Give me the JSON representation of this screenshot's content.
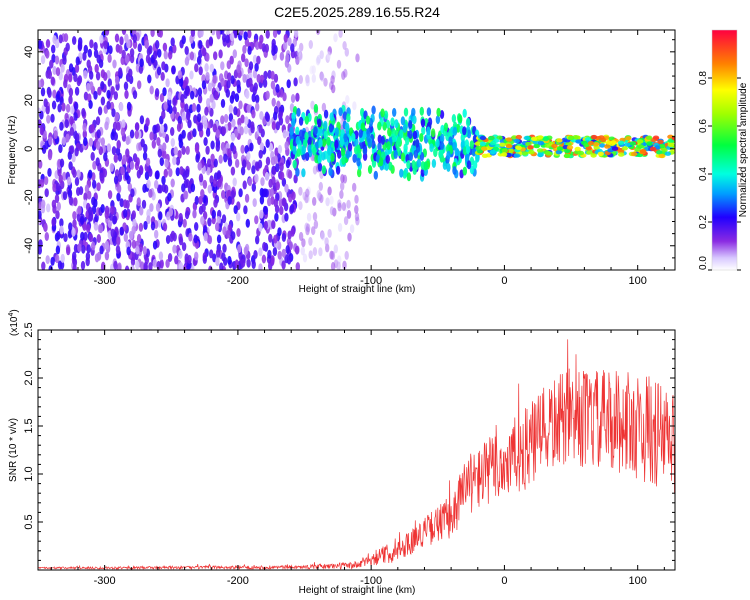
{
  "title": "C2E5.2025.289.16.55.R24",
  "chart_data": [
    {
      "type": "heatmap",
      "name": "spectrogram",
      "xlabel": "Height of straight line (km)",
      "ylabel": "Frequency (Hz)",
      "xlim": [
        -350,
        128
      ],
      "ylim": [
        -50,
        49
      ],
      "xticks": [
        -300,
        -200,
        -100,
        0,
        100
      ],
      "xtick_labels": [
        "-300",
        "-200",
        "-100",
        "0",
        "100"
      ],
      "yticks": [
        -40,
        -20,
        0,
        20,
        40
      ],
      "ytick_labels": [
        "-40",
        "-20",
        "0",
        "20",
        "40"
      ],
      "colorbar": {
        "label": "Normalized spectral amplitude",
        "range": [
          0.0,
          1.0
        ],
        "ticks": [
          0.0,
          0.2,
          0.4,
          0.6,
          0.8
        ],
        "tick_labels": [
          "0.0",
          "0.2",
          "0.4",
          "0.6",
          "0.8"
        ]
      },
      "regions": [
        {
          "x_range": [
            -350,
            -155
          ],
          "freq_range": [
            -50,
            49
          ],
          "amplitude_range": [
            0.05,
            0.22
          ],
          "density": "dense"
        },
        {
          "x_range": [
            -155,
            -110
          ],
          "freq_range": [
            -50,
            49
          ],
          "amplitude_range": [
            0.02,
            0.12
          ],
          "density": "sparse"
        },
        {
          "x_range": [
            -160,
            -20
          ],
          "freq_range": [
            -12,
            18
          ],
          "amplitude_range": [
            0.2,
            0.55
          ],
          "density": "band"
        },
        {
          "x_range": [
            -20,
            128
          ],
          "freq_range": [
            -3,
            5
          ],
          "amplitude_range": [
            0.2,
            0.95
          ],
          "density": "narrow-band"
        }
      ]
    },
    {
      "type": "line",
      "name": "snr",
      "xlabel": "Height of straight line (km)",
      "ylabel": "SNR (10 * v/v)",
      "scale_note": "(x10",
      "scale_exp": "4",
      "xlim": [
        -350,
        128
      ],
      "ylim": [
        0,
        2.5
      ],
      "xticks": [
        -300,
        -200,
        -100,
        0,
        100
      ],
      "xtick_labels": [
        "-300",
        "-200",
        "-100",
        "0",
        "100"
      ],
      "yticks": [
        0.5,
        1.0,
        1.5,
        2.0,
        2.5
      ],
      "ytick_labels": [
        "0.5",
        "1.0",
        "1.5",
        "2.0",
        "2.5"
      ],
      "color": "#ee3333",
      "envelope": {
        "x": [
          -350,
          -150,
          -110,
          -100,
          -80,
          -60,
          -40,
          -30,
          -20,
          -10,
          0,
          20,
          35,
          50,
          70,
          90,
          110,
          128
        ],
        "y": [
          0.02,
          0.03,
          0.05,
          0.12,
          0.2,
          0.4,
          0.55,
          0.85,
          0.95,
          1.05,
          1.1,
          1.3,
          1.5,
          1.6,
          1.55,
          1.55,
          1.45,
          1.3
        ]
      },
      "noise": {
        "x": [
          -350,
          -150,
          -110,
          -100,
          -60,
          -30,
          0,
          40,
          128
        ],
        "amplitude": [
          0.01,
          0.02,
          0.04,
          0.08,
          0.15,
          0.3,
          0.4,
          0.5,
          0.6
        ]
      }
    }
  ]
}
